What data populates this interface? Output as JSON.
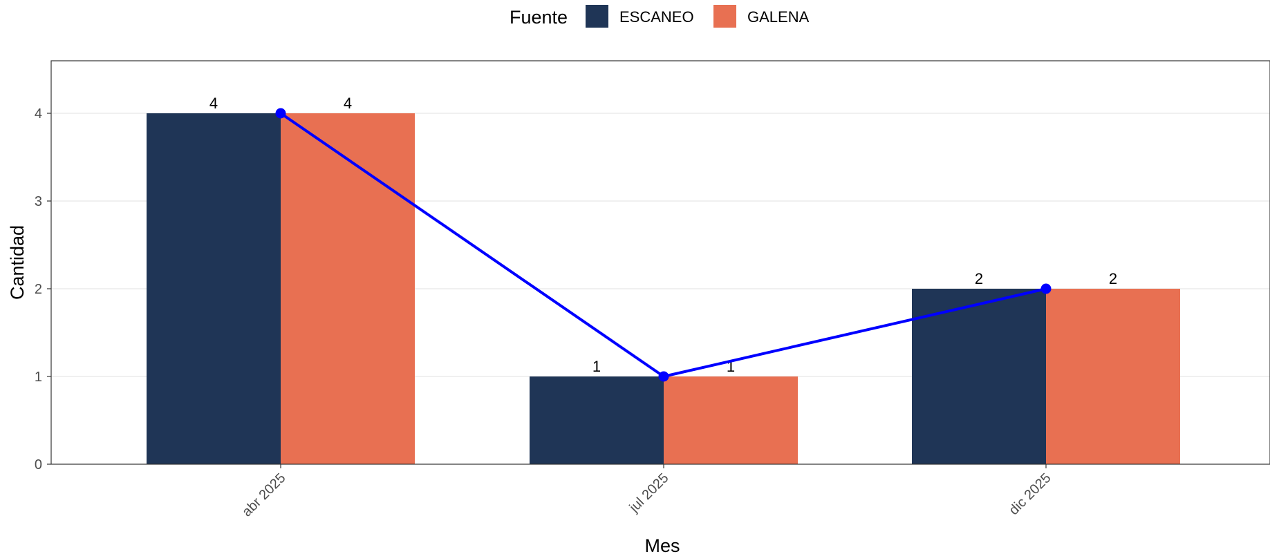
{
  "chart_data": {
    "type": "bar",
    "categories": [
      "abr 2025",
      "jul 2025",
      "dic 2025"
    ],
    "series": [
      {
        "name": "ESCANEO",
        "values": [
          4,
          1,
          2
        ],
        "color": "#1f3556"
      },
      {
        "name": "GALENA",
        "values": [
          4,
          1,
          2
        ],
        "color": "#e87052"
      }
    ],
    "line_overlay": {
      "values": [
        4,
        1,
        2
      ],
      "color": "#0000ff",
      "marker": "circle"
    },
    "xlabel": "Mes",
    "ylabel": "Cantidad",
    "ylim": [
      0,
      4.6
    ],
    "yticks": [
      0,
      1,
      2,
      3,
      4
    ],
    "grid": "horizontal",
    "legend": {
      "title": "Fuente",
      "position": "top"
    },
    "data_labels": true,
    "x_tick_rotation": -45
  }
}
